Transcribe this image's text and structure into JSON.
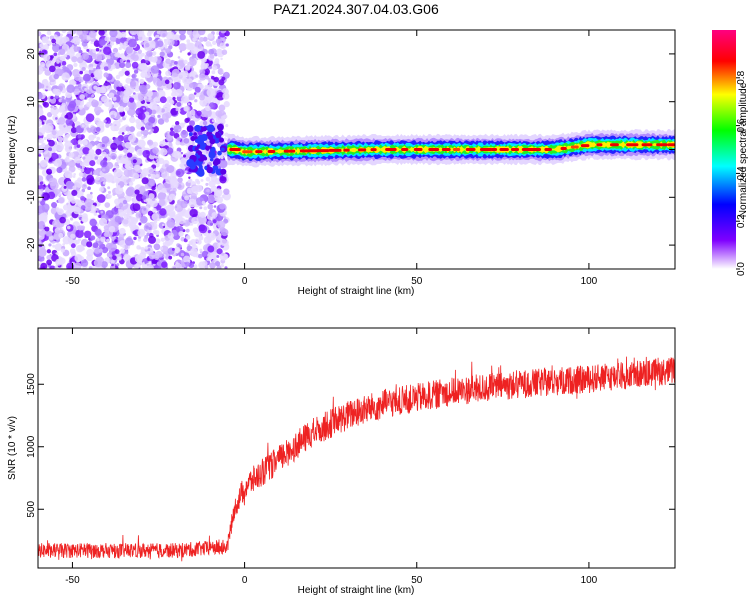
{
  "title": "PAZ1.2024.307.04.03.G06",
  "chart_data": [
    {
      "type": "heatmap",
      "xlabel": "Height of straight line (km)",
      "ylabel": "Frequency (Hz)",
      "xlim": [
        -60,
        125
      ],
      "ylim": [
        -25,
        25
      ],
      "xticks": [
        -50,
        0,
        50,
        100
      ],
      "yticks": [
        -20,
        -10,
        0,
        10,
        20
      ],
      "colorbar": {
        "label": "Normalized spectral amplitude",
        "range": [
          0,
          1
        ],
        "ticks": [
          0.0,
          0.2,
          0.4,
          0.6,
          0.8
        ],
        "colormap": [
          "#ffffff",
          "#7f00ff",
          "#0000ff",
          "#00ffff",
          "#00ff00",
          "#ffff00",
          "#ff0000",
          "#ff0080"
        ]
      },
      "features": {
        "noise_region_km": [
          -60,
          -5
        ],
        "signal_line_start_km": -5,
        "signal_freq_hz": [
          [
            -3,
            0
          ],
          [
            0,
            -0.5
          ],
          [
            40,
            0
          ],
          [
            90,
            0
          ],
          [
            100,
            1
          ],
          [
            125,
            1
          ]
        ]
      }
    },
    {
      "type": "line",
      "xlabel": "Height of straight line (km)",
      "ylabel": "SNR (10 * v/v)",
      "xlim": [
        -60,
        125
      ],
      "ylim": [
        30,
        1950
      ],
      "xticks": [
        -50,
        0,
        50,
        100
      ],
      "yticks": [
        500,
        1000,
        1500
      ],
      "series": [
        {
          "color": "#ee2222",
          "mean_curve": [
            [
              -60,
              170
            ],
            [
              -20,
              170
            ],
            [
              -5,
              200
            ],
            [
              -3,
              500
            ],
            [
              0,
              680
            ],
            [
              10,
              900
            ],
            [
              20,
              1120
            ],
            [
              30,
              1250
            ],
            [
              40,
              1340
            ],
            [
              50,
              1390
            ],
            [
              60,
              1440
            ],
            [
              70,
              1470
            ],
            [
              80,
              1500
            ],
            [
              90,
              1520
            ],
            [
              100,
              1540
            ],
            [
              110,
              1570
            ],
            [
              125,
              1610
            ]
          ],
          "noise_amplitude": [
            [
              -60,
              60
            ],
            [
              -5,
              60
            ],
            [
              0,
              110
            ],
            [
              30,
              120
            ],
            [
              125,
              110
            ]
          ]
        }
      ]
    }
  ]
}
